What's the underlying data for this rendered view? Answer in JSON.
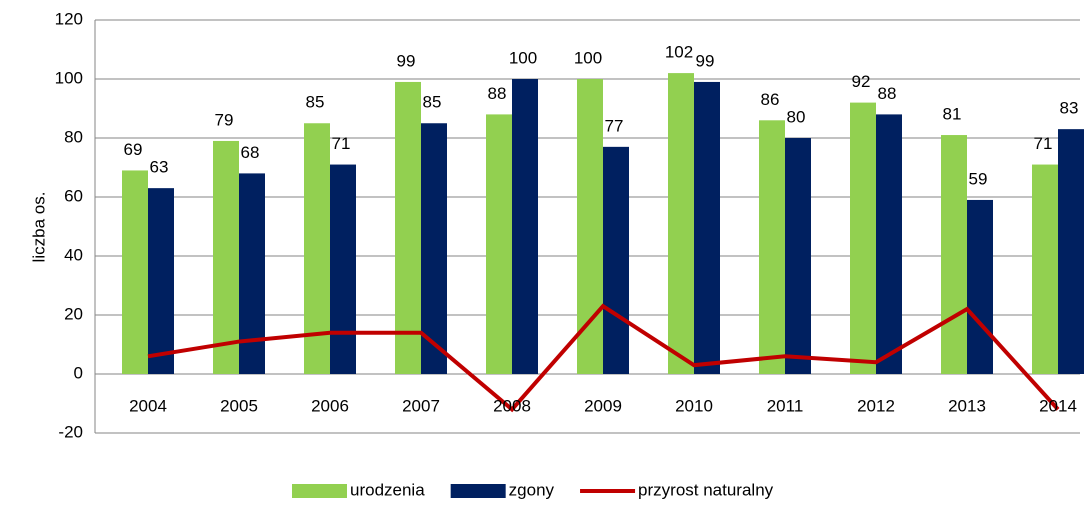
{
  "chart_data": {
    "type": "bar_line",
    "y_label": "liczba os.",
    "categories": [
      "2004",
      "2005",
      "2006",
      "2007",
      "2008",
      "2009",
      "2010",
      "2011",
      "2012",
      "2013",
      "2014"
    ],
    "series": [
      {
        "name": "urodzenia",
        "color": "#92d050",
        "kind": "bar",
        "values": [
          69,
          79,
          85,
          99,
          88,
          100,
          102,
          86,
          92,
          81,
          71
        ]
      },
      {
        "name": "zgony",
        "color": "#002060",
        "kind": "bar",
        "values": [
          63,
          68,
          71,
          85,
          100,
          77,
          99,
          80,
          88,
          59,
          83
        ]
      },
      {
        "name": "przyrost naturalny",
        "color": "#c00000",
        "kind": "line",
        "values": [
          6,
          11,
          14,
          14,
          -12,
          23,
          3,
          6,
          4,
          22,
          -12
        ]
      }
    ],
    "ylim": [
      -20,
      120
    ],
    "yticks": [
      -20,
      0,
      20,
      40,
      60,
      80,
      100,
      120
    ],
    "grid": true,
    "legend": "bottom"
  }
}
